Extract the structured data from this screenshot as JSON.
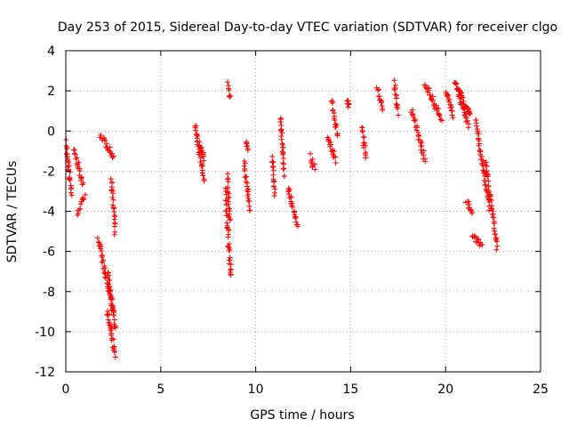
{
  "chart_data": {
    "type": "scatter",
    "title": "Day 253 of 2015, Sidereal Day-to-day VTEC variation (SDTVAR) for receiver clgo",
    "xlabel": "GPS time / hours",
    "ylabel": "SDTVAR / TECUs",
    "xlim": [
      0,
      25
    ],
    "ylim": [
      -12,
      4
    ],
    "xticks": [
      0,
      5,
      10,
      15,
      20,
      25
    ],
    "yticks": [
      -12,
      -10,
      -8,
      -6,
      -4,
      -2,
      0,
      2,
      4
    ],
    "grid": true,
    "marker": "+",
    "color": "#ff0000",
    "segments": [
      {
        "x": [
          0.0,
          0.3
        ],
        "y": [
          -0.5,
          -3.1
        ]
      },
      {
        "x": [
          0.45,
          0.9
        ],
        "y": [
          -1.0,
          -2.6
        ]
      },
      {
        "x": [
          0.6,
          1.0
        ],
        "y": [
          -4.1,
          -3.2
        ]
      },
      {
        "x": [
          1.7,
          2.5
        ],
        "y": [
          -5.3,
          -9.0
        ]
      },
      {
        "x": [
          1.8,
          2.5
        ],
        "y": [
          -0.2,
          -1.2
        ]
      },
      {
        "x": [
          2.2,
          2.6
        ],
        "y": [
          -9.0,
          -11.2
        ]
      },
      {
        "x": [
          2.2,
          2.6
        ],
        "y": [
          -7.0,
          -9.8
        ]
      },
      {
        "x": [
          2.4,
          2.6
        ],
        "y": [
          -2.4,
          -5.0
        ]
      },
      {
        "x": [
          6.8,
          7.3
        ],
        "y": [
          0.4,
          -2.6
        ]
      },
      {
        "x": [
          7.05,
          7.3
        ],
        "y": [
          -0.6,
          -1.5
        ]
      },
      {
        "x": [
          8.4,
          8.7
        ],
        "y": [
          -3.0,
          -7.3
        ]
      },
      {
        "x": [
          8.5,
          8.65
        ],
        "y": [
          -2.2,
          -4.5
        ]
      },
      {
        "x": [
          8.55,
          8.65
        ],
        "y": [
          2.3,
          1.6
        ]
      },
      {
        "x": [
          9.4,
          9.7
        ],
        "y": [
          -1.6,
          -3.9
        ]
      },
      {
        "x": [
          9.5,
          9.6
        ],
        "y": [
          -0.5,
          -1.0
        ]
      },
      {
        "x": [
          10.9,
          11.0
        ],
        "y": [
          -1.3,
          -3.2
        ]
      },
      {
        "x": [
          11.3,
          11.5
        ],
        "y": [
          0.7,
          -2.3
        ]
      },
      {
        "x": [
          11.7,
          12.2
        ],
        "y": [
          -2.8,
          -4.8
        ]
      },
      {
        "x": [
          12.9,
          13.1
        ],
        "y": [
          -1.3,
          -1.9
        ]
      },
      {
        "x": [
          13.8,
          14.2
        ],
        "y": [
          -0.2,
          -1.5
        ]
      },
      {
        "x": [
          14.0,
          14.3
        ],
        "y": [
          1.6,
          -0.2
        ]
      },
      {
        "x": [
          14.8,
          14.9
        ],
        "y": [
          1.5,
          1.2
        ]
      },
      {
        "x": [
          15.6,
          15.8
        ],
        "y": [
          0.2,
          -1.3
        ]
      },
      {
        "x": [
          16.4,
          16.7
        ],
        "y": [
          2.1,
          1.1
        ]
      },
      {
        "x": [
          17.3,
          17.5
        ],
        "y": [
          2.4,
          0.9
        ]
      },
      {
        "x": [
          18.2,
          18.9
        ],
        "y": [
          1.1,
          -1.4
        ]
      },
      {
        "x": [
          18.9,
          19.8
        ],
        "y": [
          2.4,
          0.5
        ]
      },
      {
        "x": [
          20.0,
          20.4
        ],
        "y": [
          2.0,
          0.8
        ]
      },
      {
        "x": [
          20.5,
          21.2
        ],
        "y": [
          2.5,
          0.3
        ]
      },
      {
        "x": [
          20.7,
          21.3
        ],
        "y": [
          2.0,
          0.7
        ]
      },
      {
        "x": [
          21.1,
          21.4
        ],
        "y": [
          -3.5,
          -4.0
        ]
      },
      {
        "x": [
          21.4,
          21.9
        ],
        "y": [
          -5.2,
          -5.7
        ]
      },
      {
        "x": [
          21.6,
          22.3
        ],
        "y": [
          0.5,
          -3.8
        ]
      },
      {
        "x": [
          22.1,
          22.7
        ],
        "y": [
          -1.5,
          -5.8
        ]
      }
    ]
  }
}
